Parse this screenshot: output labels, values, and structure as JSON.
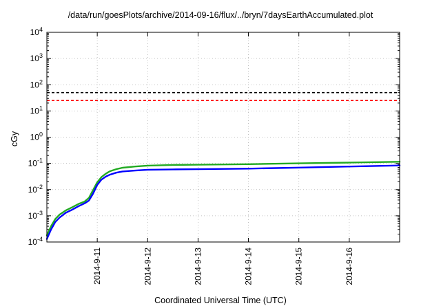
{
  "chart_data": {
    "type": "line",
    "title": "/data/run/goesPlots/archive/2014-09-16/flux/../bryn/7daysEarthAccumulated.plot",
    "xlabel": "Coordinated Universal Time (UTC)",
    "ylabel": "cGy",
    "yscale": "log",
    "ylim": [
      0.0001,
      10000
    ],
    "xlim": [
      "2014-09-10T00:00",
      "2014-09-17T00:00"
    ],
    "y_ticks": [
      {
        "value": 0.0001,
        "base": "10",
        "exp": "-4"
      },
      {
        "value": 0.001,
        "base": "10",
        "exp": "-3"
      },
      {
        "value": 0.01,
        "base": "10",
        "exp": "-2"
      },
      {
        "value": 0.1,
        "base": "10",
        "exp": "-1"
      },
      {
        "value": 1,
        "base": "10",
        "exp": "0"
      },
      {
        "value": 10,
        "base": "10",
        "exp": "1"
      },
      {
        "value": 100,
        "base": "10",
        "exp": "2"
      },
      {
        "value": 1000,
        "base": "10",
        "exp": "3"
      },
      {
        "value": 10000,
        "base": "10",
        "exp": "4"
      }
    ],
    "x_ticks": [
      {
        "value": "2014-09-11T00:00",
        "label": "2014-9-11"
      },
      {
        "value": "2014-09-12T00:00",
        "label": "2014-9-12"
      },
      {
        "value": "2014-09-13T00:00",
        "label": "2014-9-13"
      },
      {
        "value": "2014-09-14T00:00",
        "label": "2014-9-14"
      },
      {
        "value": "2014-09-15T00:00",
        "label": "2014-9-15"
      },
      {
        "value": "2014-09-16T00:00",
        "label": "2014-9-16"
      }
    ],
    "grid": true,
    "reference_lines": [
      {
        "y": 50,
        "color": "#000000",
        "style": "dashed"
      },
      {
        "y": 25,
        "color": "#ff0000",
        "style": "dashed"
      }
    ],
    "series": [
      {
        "color": "#22aa22",
        "x": [
          "2014-09-10T00:00",
          "2014-09-10T02:00",
          "2014-09-10T04:00",
          "2014-09-10T06:00",
          "2014-09-10T09:00",
          "2014-09-10T12:00",
          "2014-09-10T15:00",
          "2014-09-10T18:00",
          "2014-09-10T20:00",
          "2014-09-10T22:00",
          "2014-09-11T00:00",
          "2014-09-11T02:00",
          "2014-09-11T04:00",
          "2014-09-11T06:00",
          "2014-09-11T09:00",
          "2014-09-11T12:00",
          "2014-09-11T18:00",
          "2014-09-12T00:00",
          "2014-09-12T12:00",
          "2014-09-13T00:00",
          "2014-09-14T00:00",
          "2014-09-15T00:00",
          "2014-09-16T00:00",
          "2014-09-17T00:00"
        ],
        "y": [
          0.00018,
          0.0004,
          0.00075,
          0.0011,
          0.0016,
          0.0021,
          0.0028,
          0.0035,
          0.0048,
          0.0095,
          0.019,
          0.03,
          0.04,
          0.05,
          0.06,
          0.068,
          0.076,
          0.082,
          0.087,
          0.089,
          0.093,
          0.1,
          0.107,
          0.115
        ]
      },
      {
        "color": "#0000ff",
        "x": [
          "2014-09-10T00:00",
          "2014-09-10T02:00",
          "2014-09-10T04:00",
          "2014-09-10T06:00",
          "2014-09-10T09:00",
          "2014-09-10T12:00",
          "2014-09-10T15:00",
          "2014-09-10T18:00",
          "2014-09-10T20:00",
          "2014-09-10T22:00",
          "2014-09-11T00:00",
          "2014-09-11T02:00",
          "2014-09-11T04:00",
          "2014-09-11T06:00",
          "2014-09-11T09:00",
          "2014-09-11T12:00",
          "2014-09-11T18:00",
          "2014-09-12T00:00",
          "2014-09-12T12:00",
          "2014-09-13T00:00",
          "2014-09-14T00:00",
          "2014-09-15T00:00",
          "2014-09-16T00:00",
          "2014-09-17T00:00"
        ],
        "y": [
          0.00013,
          0.0003,
          0.00058,
          0.00085,
          0.0013,
          0.0017,
          0.0023,
          0.003,
          0.0038,
          0.007,
          0.015,
          0.024,
          0.031,
          0.037,
          0.044,
          0.049,
          0.053,
          0.057,
          0.059,
          0.06,
          0.063,
          0.069,
          0.076,
          0.083
        ]
      }
    ]
  }
}
